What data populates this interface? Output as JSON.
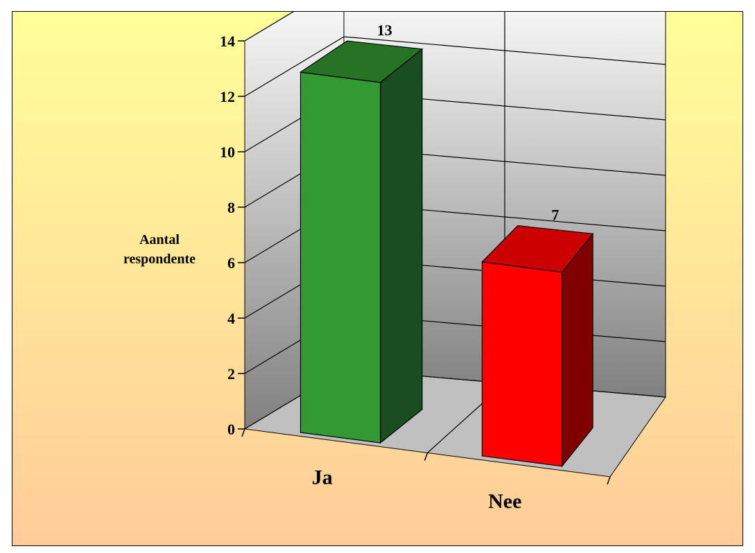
{
  "chart_data": {
    "type": "bar",
    "view": "3d",
    "categories": [
      "Ja",
      "Nee"
    ],
    "values": [
      13,
      7
    ],
    "data_labels": [
      "13",
      "7"
    ],
    "ylabel": "Aantal respondente",
    "ylabel_lines": [
      "Aantal",
      "respondente"
    ],
    "ylim": [
      0,
      14
    ],
    "yticks": [
      0,
      2,
      4,
      6,
      8,
      10,
      12,
      14
    ],
    "grid": true,
    "legend": "none",
    "colors": {
      "Ja": {
        "front": "#339933",
        "top": "#267326",
        "side": "#1a4d1f"
      },
      "Nee": {
        "front": "#ff0000",
        "top": "#cc0000",
        "side": "#800000"
      },
      "background_top": "#ffff99",
      "background_bottom": "#ffcc99",
      "wall_top": "#ffffff",
      "wall_bottom": "#808080",
      "floor": "#c0c0c0"
    }
  }
}
